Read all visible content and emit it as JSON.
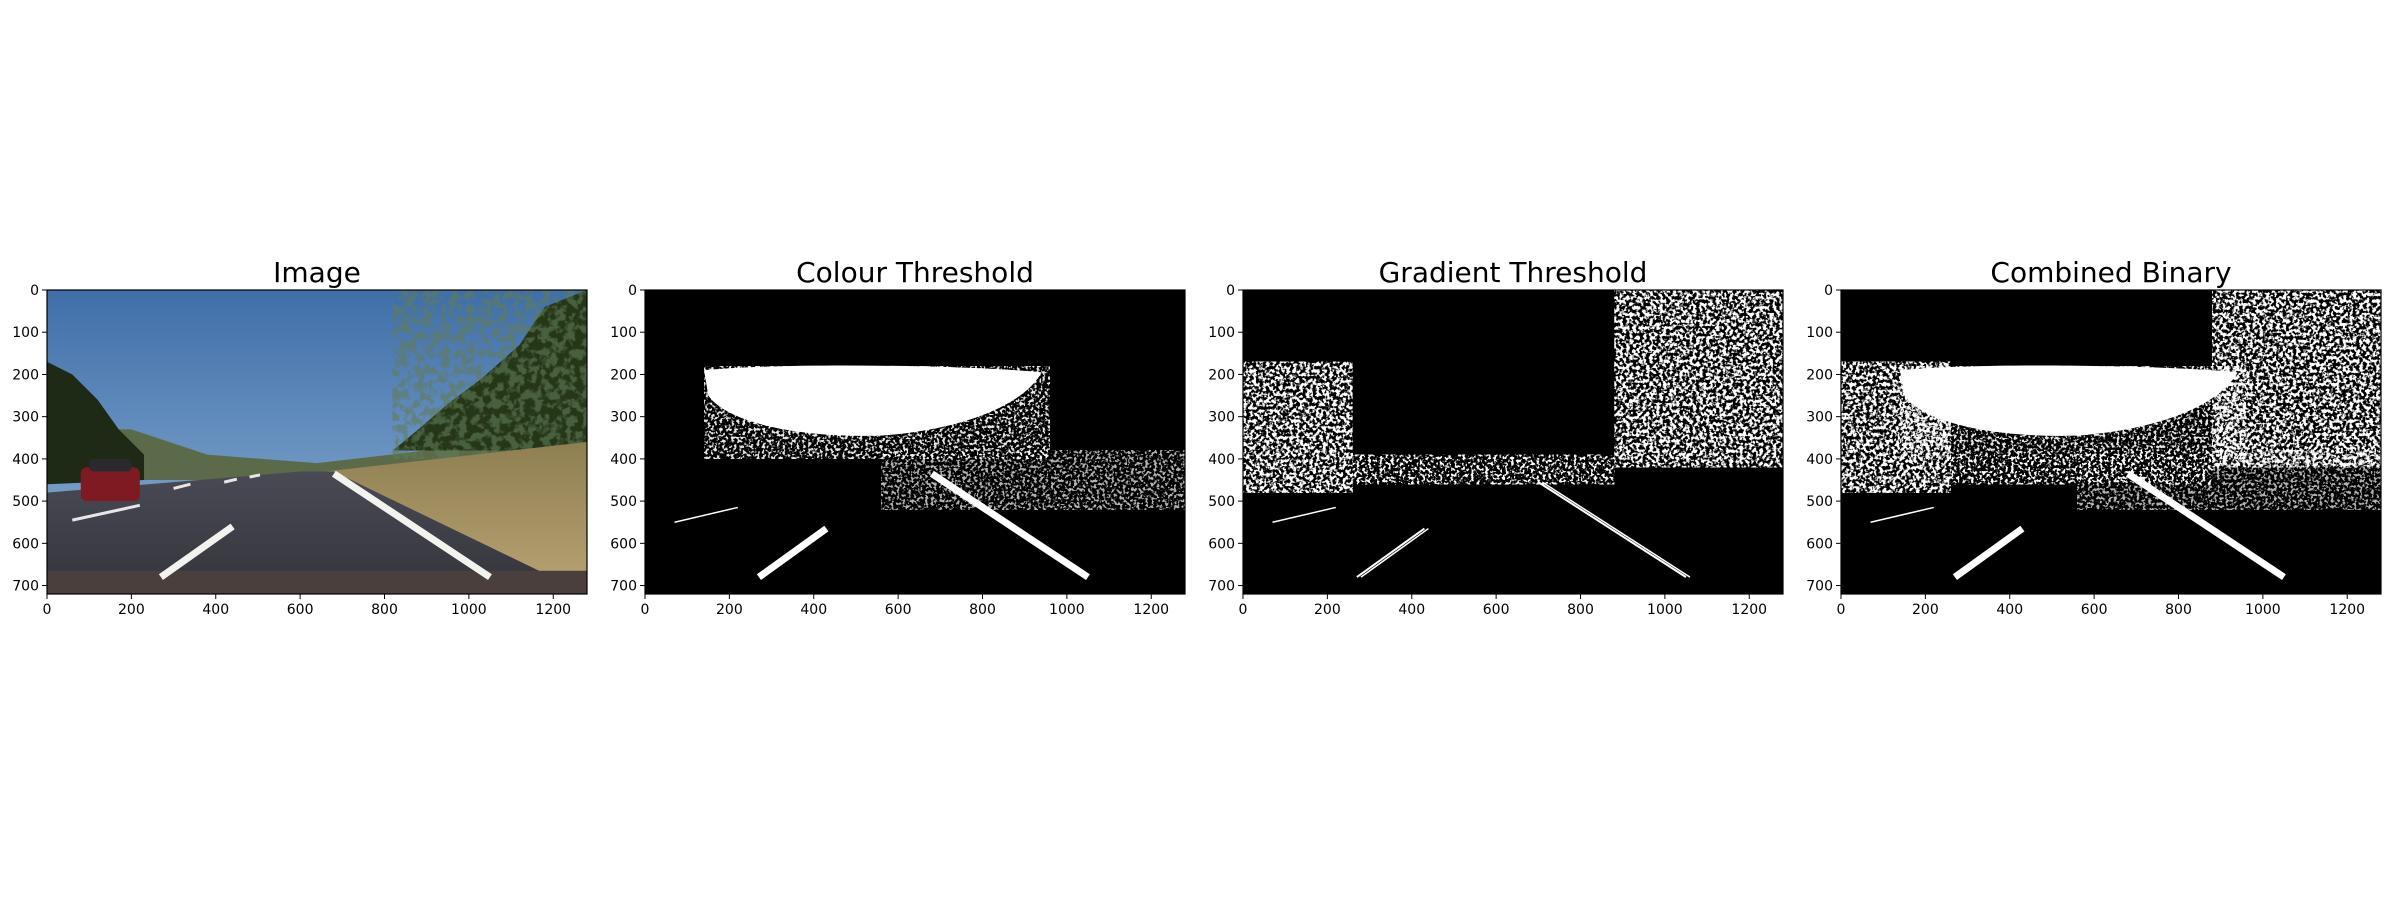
{
  "chart_data": [
    {
      "type": "image",
      "title": "Image",
      "xlabel": "",
      "ylabel": "",
      "xlim": [
        0,
        1280
      ],
      "ylim": [
        720,
        0
      ],
      "xticks": [
        0,
        200,
        400,
        600,
        800,
        1000,
        1200
      ],
      "yticks": [
        0,
        100,
        200,
        300,
        400,
        500,
        600,
        700
      ],
      "lane_lines": [
        {
          "x1": 270,
          "y1": 680,
          "x2": 440,
          "y2": 560
        },
        {
          "x1": 680,
          "y1": 435,
          "x2": 1050,
          "y2": 680
        }
      ]
    },
    {
      "type": "image",
      "title": "Colour Threshold",
      "xlabel": "",
      "ylabel": "",
      "xlim": [
        0,
        1280
      ],
      "ylim": [
        720,
        0
      ],
      "xticks": [
        0,
        200,
        400,
        600,
        800,
        1000,
        1200
      ],
      "yticks": [
        0,
        100,
        200,
        300,
        400,
        500,
        600,
        700
      ],
      "lane_lines": [
        {
          "x1": 270,
          "y1": 680,
          "x2": 430,
          "y2": 565
        },
        {
          "x1": 680,
          "y1": 435,
          "x2": 1050,
          "y2": 680
        }
      ]
    },
    {
      "type": "image",
      "title": "Gradient Threshold",
      "xlabel": "",
      "ylabel": "",
      "xlim": [
        0,
        1280
      ],
      "ylim": [
        720,
        0
      ],
      "xticks": [
        0,
        200,
        400,
        600,
        800,
        1000,
        1200
      ],
      "yticks": [
        0,
        100,
        200,
        300,
        400,
        500,
        600,
        700
      ],
      "lane_lines": [
        {
          "x1": 270,
          "y1": 680,
          "x2": 430,
          "y2": 565
        },
        {
          "x1": 700,
          "y1": 455,
          "x2": 1050,
          "y2": 680
        }
      ]
    },
    {
      "type": "image",
      "title": "Combined Binary",
      "xlabel": "",
      "ylabel": "",
      "xlim": [
        0,
        1280
      ],
      "ylim": [
        720,
        0
      ],
      "xticks": [
        0,
        200,
        400,
        600,
        800,
        1000,
        1200
      ],
      "yticks": [
        0,
        100,
        200,
        300,
        400,
        500,
        600,
        700
      ],
      "lane_lines": [
        {
          "x1": 270,
          "y1": 680,
          "x2": 430,
          "y2": 565
        },
        {
          "x1": 680,
          "y1": 435,
          "x2": 1050,
          "y2": 680
        }
      ]
    }
  ]
}
